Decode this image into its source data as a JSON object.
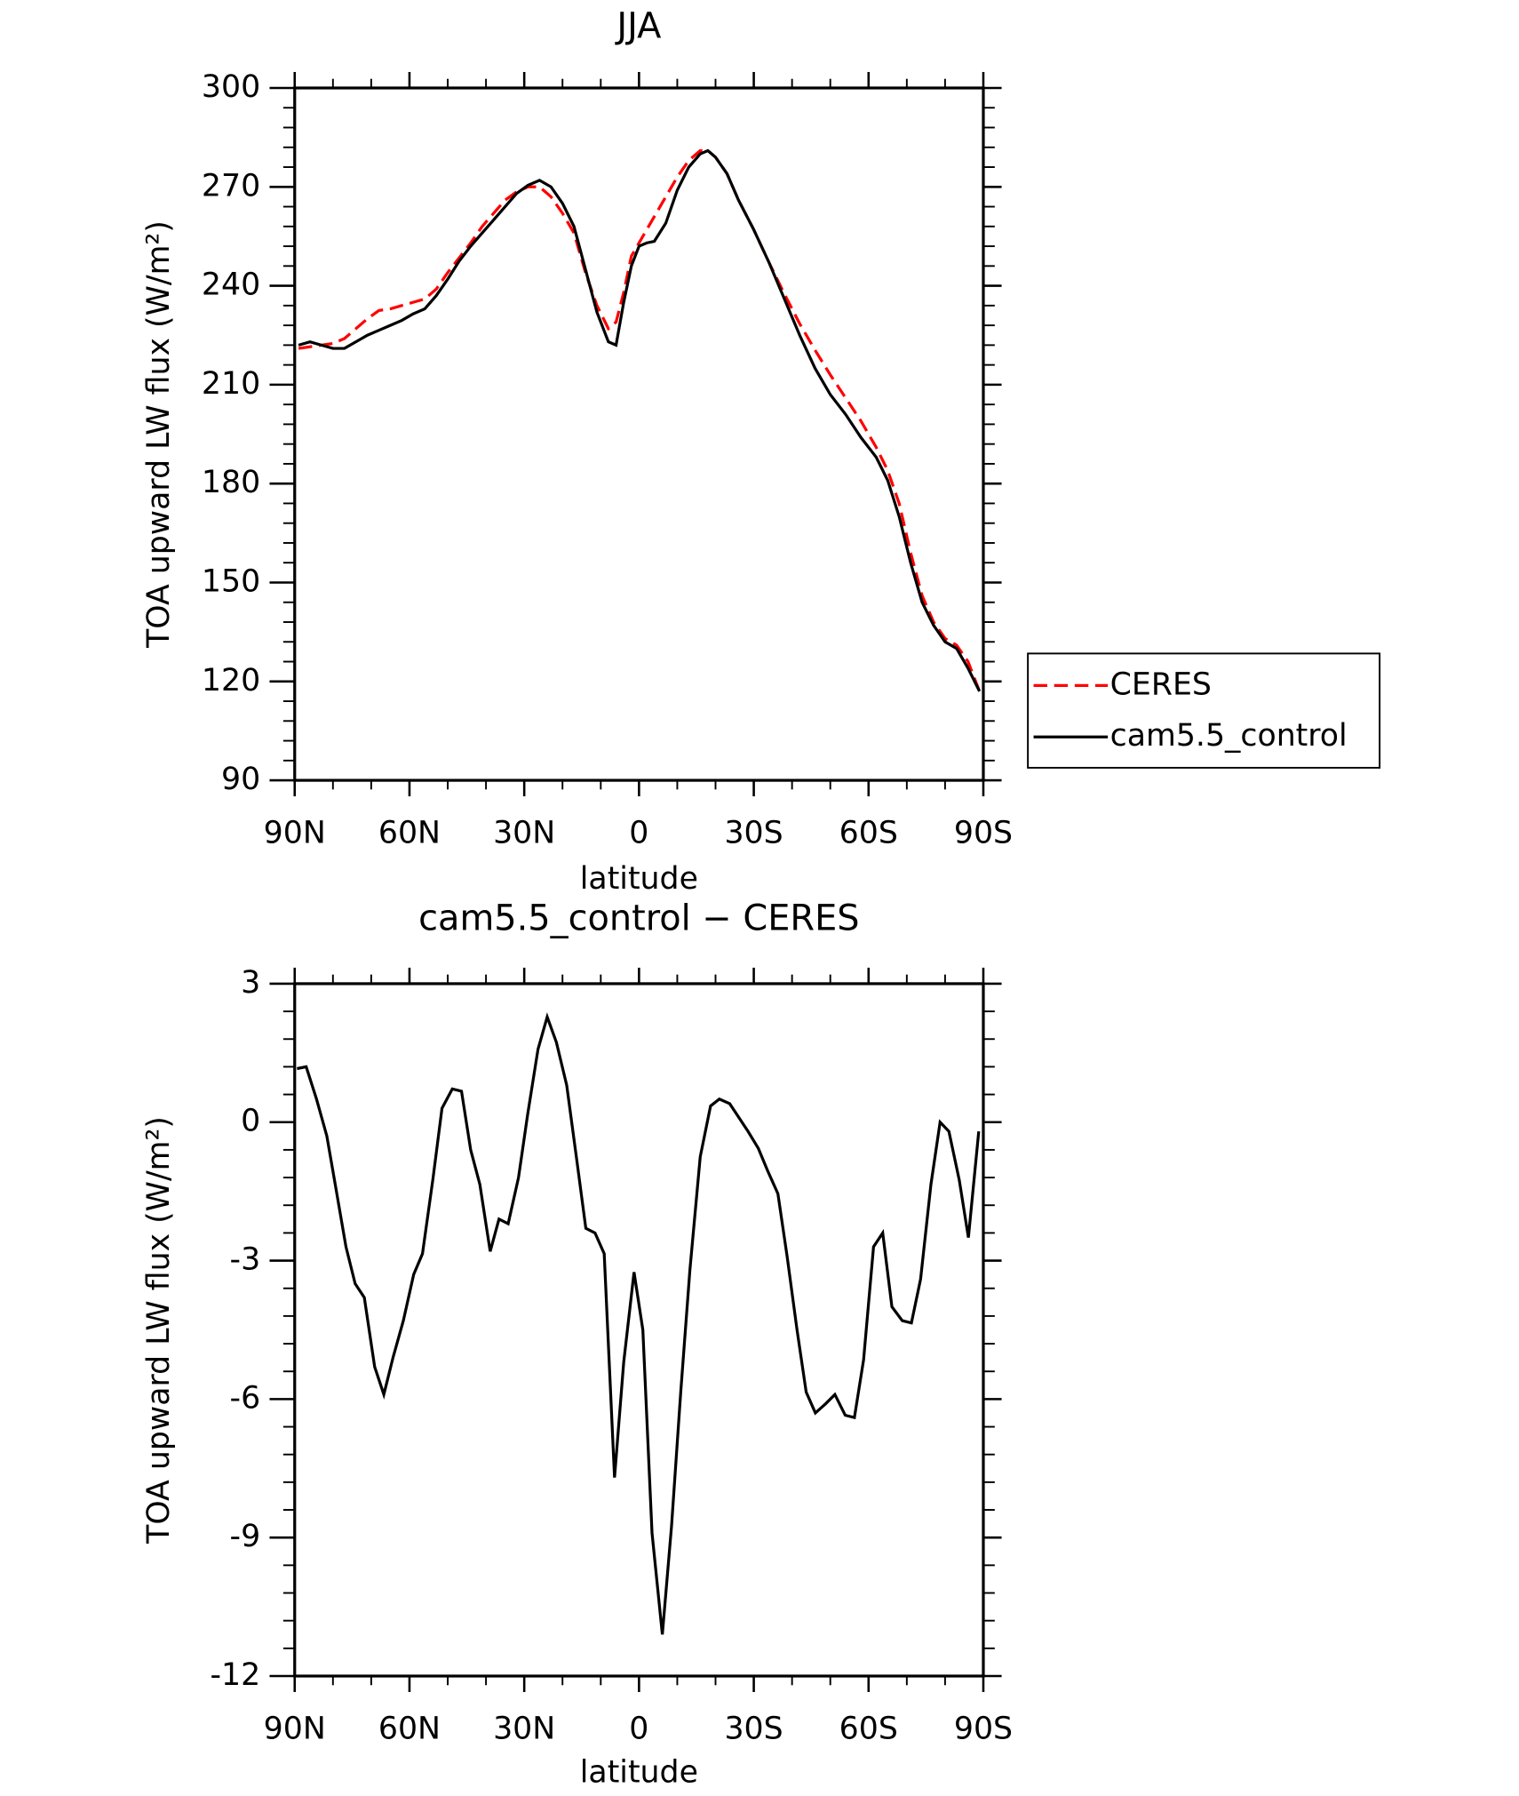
{
  "chart_data": [
    {
      "type": "line",
      "title": "JJA",
      "xlabel": "latitude",
      "ylabel": "TOA upward LW flux (W/m²)",
      "x": [
        89,
        86,
        83,
        80,
        77,
        74,
        71,
        68,
        65,
        62,
        59,
        56,
        53,
        50,
        47,
        44,
        41,
        38,
        35,
        32,
        29,
        26,
        23,
        20,
        17,
        14,
        11,
        8,
        6,
        4,
        2,
        0,
        -2,
        -4,
        -7,
        -10,
        -13,
        -16,
        -18,
        -20,
        -23,
        -26,
        -30,
        -34,
        -38,
        -42,
        -46,
        -50,
        -54,
        -58,
        -62,
        -65,
        -68,
        -71,
        -74,
        -77,
        -80,
        -83,
        -86,
        -89
      ],
      "xlim": [
        90,
        -90
      ],
      "xticks": [
        {
          "value": 90,
          "label": "90N"
        },
        {
          "value": 60,
          "label": "60N"
        },
        {
          "value": 30,
          "label": "30N"
        },
        0,
        {
          "value": -30,
          "label": "30S"
        },
        {
          "value": -60,
          "label": "60S"
        },
        {
          "value": -90,
          "label": "90S"
        }
      ],
      "ylim": [
        90,
        300
      ],
      "yticks": [
        90,
        120,
        150,
        180,
        210,
        240,
        270,
        300
      ],
      "legend": "right",
      "series": [
        {
          "name": "CERES",
          "color": "#ff0000",
          "style": "dashed",
          "values": [
            221,
            221.5,
            222,
            222.5,
            224,
            227,
            230,
            232.5,
            233,
            234,
            235,
            236,
            239,
            244,
            248.5,
            253,
            258,
            262,
            266,
            268.5,
            270,
            270,
            267,
            262,
            256,
            244,
            234,
            227,
            229,
            238,
            249,
            253,
            257,
            261,
            267,
            273,
            278,
            281,
            281,
            279,
            274,
            266,
            257,
            247,
            237.5,
            228.5,
            220.5,
            213,
            206,
            199,
            191,
            184,
            174,
            159,
            146,
            138,
            133,
            131,
            126,
            117
          ]
        },
        {
          "name": "cam5.5_control",
          "color": "#000000",
          "style": "solid",
          "values": [
            222,
            223,
            222,
            221,
            221,
            223,
            225,
            226.5,
            228,
            229.5,
            231.5,
            233,
            237,
            242,
            247.5,
            252,
            256,
            260,
            264,
            268,
            270.5,
            272,
            270,
            265,
            258,
            245,
            232,
            223,
            222,
            235,
            246,
            252,
            253,
            253.5,
            259,
            269,
            276,
            280,
            281,
            279,
            274,
            266,
            257,
            247,
            236,
            225,
            215,
            207,
            201,
            194,
            188,
            181,
            170,
            156,
            144,
            137,
            132,
            130,
            124,
            117
          ]
        }
      ]
    },
    {
      "type": "line",
      "title": "cam5.5_control − CERES",
      "xlabel": "latitude",
      "ylabel": "TOA upward LW flux (W/m²)",
      "x": [
        89.4,
        87,
        84.3,
        81.6,
        79.3,
        76.6,
        74.2,
        71.8,
        69.1,
        66.7,
        64.3,
        61.6,
        58.9,
        56.6,
        53.9,
        51.5,
        48.8,
        46.4,
        44,
        41.6,
        38.9,
        36.6,
        34.2,
        31.5,
        29.1,
        26.4,
        24,
        21.6,
        18.9,
        16.3,
        13.9,
        11.5,
        9.1,
        6.4,
        4,
        1.3,
        -1,
        -3.4,
        -6.1,
        -8.5,
        -10.9,
        -13.3,
        -16,
        -18.7,
        -21,
        -23.7,
        -26.1,
        -28.5,
        -31.2,
        -33.6,
        -36.3,
        -38.7,
        -41.3,
        -43.7,
        -46.1,
        -48.8,
        -51.2,
        -53.9,
        -56.3,
        -58.7,
        -61.3,
        -63.7,
        -66.1,
        -68.8,
        -71.2,
        -73.6,
        -76.3,
        -78.7,
        -81,
        -83.7,
        -86.1,
        -88.8
      ],
      "xlim": [
        90,
        -90
      ],
      "xticks": [
        {
          "value": 90,
          "label": "90N"
        },
        {
          "value": 60,
          "label": "60N"
        },
        {
          "value": 30,
          "label": "30N"
        },
        0,
        {
          "value": -30,
          "label": "30S"
        },
        {
          "value": -60,
          "label": "60S"
        },
        {
          "value": -90,
          "label": "90S"
        }
      ],
      "ylim": [
        -12,
        3
      ],
      "yticks": [
        -12,
        -9,
        -6,
        -3,
        0,
        3
      ],
      "series": [
        {
          "color": "#000000",
          "style": "solid",
          "values": [
            1.16,
            1.2,
            0.5,
            -0.3,
            -1.4,
            -2.7,
            -3.5,
            -3.8,
            -5.3,
            -5.9,
            -5.1,
            -4.3,
            -3.3,
            -2.85,
            -1.25,
            0.3,
            0.72,
            0.67,
            -0.6,
            -1.35,
            -2.8,
            -2.1,
            -2.2,
            -1.2,
            0.17,
            1.58,
            2.28,
            1.73,
            0.8,
            -0.8,
            -2.3,
            -2.4,
            -2.85,
            -7.7,
            -5.2,
            -3.25,
            -4.5,
            -8.9,
            -11.1,
            -8.75,
            -5.85,
            -3.2,
            -0.75,
            0.35,
            0.5,
            0.4,
            0.1,
            -0.2,
            -0.57,
            -1.05,
            -1.55,
            -2.9,
            -4.5,
            -5.85,
            -6.3,
            -6.1,
            -5.9,
            -6.35,
            -6.4,
            -5.15,
            -2.7,
            -2.4,
            -4.0,
            -4.3,
            -4.35,
            -3.4,
            -1.35,
            0,
            -0.2,
            -1.25,
            -2.5,
            -0.2
          ]
        }
      ]
    }
  ]
}
